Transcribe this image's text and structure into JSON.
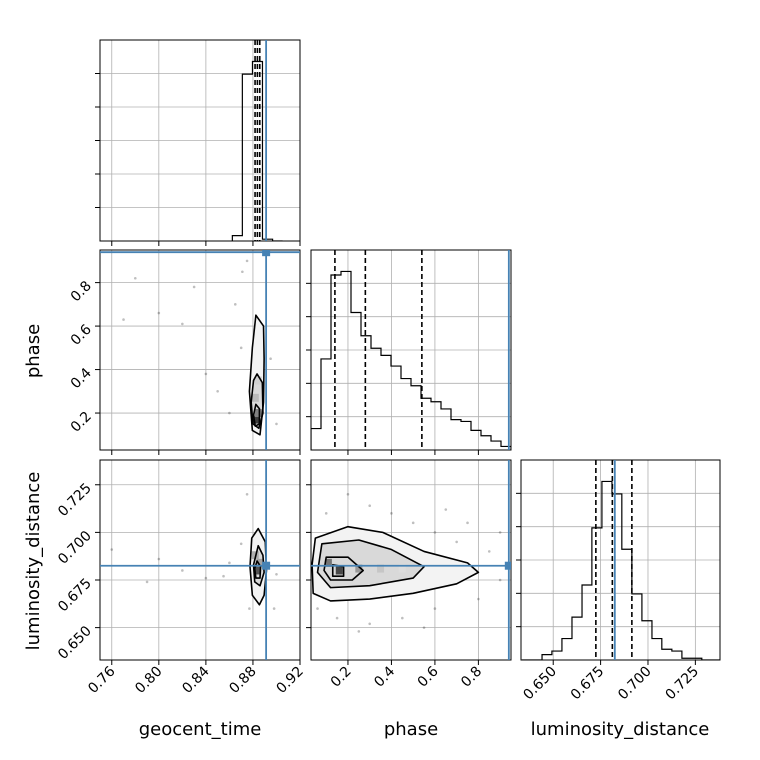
{
  "chart_data": {
    "type": "corner",
    "parameters": [
      {
        "name": "geocent_time",
        "xlabel": "geocent_time",
        "ylabel": "",
        "range": [
          0.75,
          0.92
        ],
        "ticks": [
          0.76,
          0.8,
          0.84,
          0.88,
          0.92
        ],
        "tick_labels": [
          "0.76",
          "0.80",
          "0.84",
          "0.88",
          "0.92"
        ],
        "truth": 0.8912,
        "quantiles": [
          0.8818,
          0.8838,
          0.8858
        ],
        "histogram": {
          "bin_edges": [
            0.8625,
            0.871,
            0.8796,
            0.8881,
            0.8967,
            0.9052
          ],
          "counts": [
            0.03,
            0.93,
            1.0,
            0.01,
            0.0
          ]
        }
      },
      {
        "name": "phase",
        "xlabel": "phase",
        "ylabel": "phase",
        "range": [
          0.03,
          0.95
        ],
        "ticks": [
          0.2,
          0.4,
          0.6,
          0.8
        ],
        "tick_labels": [
          "0.2",
          "0.4",
          "0.6",
          "0.8"
        ],
        "truth": 0.94,
        "quantiles": [
          0.14,
          0.28,
          0.54
        ],
        "histogram": {
          "bin_edges": [
            0.03,
            0.076,
            0.122,
            0.168,
            0.214,
            0.26,
            0.306,
            0.352,
            0.398,
            0.444,
            0.49,
            0.536,
            0.582,
            0.628,
            0.674,
            0.72,
            0.766,
            0.812,
            0.858,
            0.904,
            0.95
          ],
          "counts": [
            0.12,
            0.51,
            0.98,
            1.0,
            0.77,
            0.64,
            0.57,
            0.53,
            0.47,
            0.4,
            0.36,
            0.29,
            0.27,
            0.23,
            0.17,
            0.16,
            0.11,
            0.08,
            0.05,
            0.02
          ]
        }
      },
      {
        "name": "luminosity_distance",
        "xlabel": "luminosity_distance",
        "ylabel": "luminosity_distance",
        "range": [
          0.633,
          0.738
        ],
        "ticks": [
          0.65,
          0.675,
          0.7,
          0.725
        ],
        "tick_labels": [
          "0.650",
          "0.675",
          "0.700",
          "0.725"
        ],
        "truth": 0.6825,
        "quantiles": [
          0.6725,
          0.6812,
          0.6915
        ],
        "histogram": {
          "bin_edges": [
            0.6335,
            0.6388,
            0.6441,
            0.6493,
            0.6546,
            0.6599,
            0.6652,
            0.6704,
            0.6757,
            0.681,
            0.6862,
            0.6915,
            0.6968,
            0.7021,
            0.7073,
            0.7126,
            0.7179,
            0.7231,
            0.7284,
            0.7337,
            0.739
          ],
          "counts": [
            0.0,
            0.0,
            0.03,
            0.05,
            0.12,
            0.24,
            0.42,
            0.74,
            1.0,
            0.93,
            0.62,
            0.37,
            0.22,
            0.12,
            0.06,
            0.05,
            0.01,
            0.01,
            0.0,
            0.0
          ]
        }
      }
    ],
    "truth_color": "#4682b4",
    "quantile_style": "dashed",
    "grid": true,
    "panels_2d": [
      {
        "x_param": "geocent_time",
        "y_param": "phase",
        "contours": [
          [
            [
              0.8825,
              0.65
            ],
            [
              0.889,
              0.6
            ],
            [
              0.8895,
              0.45
            ],
            [
              0.889,
              0.25
            ],
            [
              0.886,
              0.1
            ],
            [
              0.8795,
              0.12
            ],
            [
              0.877,
              0.3
            ],
            [
              0.8795,
              0.5
            ],
            [
              0.8825,
              0.65
            ]
          ],
          [
            [
              0.8835,
              0.38
            ],
            [
              0.888,
              0.34
            ],
            [
              0.8885,
              0.2
            ],
            [
              0.885,
              0.13
            ],
            [
              0.88,
              0.15
            ],
            [
              0.8785,
              0.25
            ],
            [
              0.8805,
              0.35
            ],
            [
              0.8835,
              0.38
            ]
          ],
          [
            [
              0.8825,
              0.24
            ],
            [
              0.8855,
              0.22
            ],
            [
              0.8855,
              0.15
            ],
            [
              0.882,
              0.14
            ],
            [
              0.8805,
              0.19
            ],
            [
              0.8825,
              0.24
            ]
          ]
        ],
        "dense_cells": [
          [
            0.8825,
            0.17,
            0.85
          ],
          [
            0.8845,
            0.2,
            0.55
          ],
          [
            0.882,
            0.27,
            0.3
          ],
          [
            0.8845,
            0.35,
            0.2
          ]
        ],
        "scatter": [
          [
            0.86,
            0.2
          ],
          [
            0.85,
            0.3
          ],
          [
            0.84,
            0.38
          ],
          [
            0.82,
            0.61
          ],
          [
            0.8,
            0.66
          ],
          [
            0.78,
            0.82
          ],
          [
            0.77,
            0.63
          ],
          [
            0.83,
            0.78
          ],
          [
            0.87,
            0.5
          ],
          [
            0.871,
            0.85
          ],
          [
            0.865,
            0.7
          ],
          [
            0.895,
            0.45
          ],
          [
            0.9,
            0.15
          ],
          [
            0.875,
            0.9
          ]
        ]
      },
      {
        "x_param": "geocent_time",
        "y_param": "luminosity_distance",
        "contours": [
          [
            [
              0.8845,
              0.702
            ],
            [
              0.8905,
              0.695
            ],
            [
              0.8915,
              0.68
            ],
            [
              0.8895,
              0.667
            ],
            [
              0.8855,
              0.662
            ],
            [
              0.8795,
              0.667
            ],
            [
              0.8775,
              0.682
            ],
            [
              0.879,
              0.697
            ],
            [
              0.8845,
              0.702
            ]
          ],
          [
            [
              0.8845,
              0.693
            ],
            [
              0.8885,
              0.688
            ],
            [
              0.8895,
              0.679
            ],
            [
              0.886,
              0.672
            ],
            [
              0.8815,
              0.674
            ],
            [
              0.8805,
              0.683
            ],
            [
              0.8845,
              0.693
            ]
          ],
          [
            [
              0.8835,
              0.685
            ],
            [
              0.8865,
              0.682
            ],
            [
              0.886,
              0.676
            ],
            [
              0.8825,
              0.676
            ],
            [
              0.8815,
              0.681
            ],
            [
              0.8835,
              0.685
            ]
          ]
        ],
        "dense_cells": [
          [
            0.8835,
            0.68,
            0.75
          ],
          [
            0.886,
            0.684,
            0.4
          ],
          [
            0.882,
            0.688,
            0.35
          ]
        ],
        "scatter": [
          [
            0.76,
            0.691
          ],
          [
            0.8,
            0.686
          ],
          [
            0.82,
            0.68
          ],
          [
            0.84,
            0.676
          ],
          [
            0.86,
            0.684
          ],
          [
            0.855,
            0.677
          ],
          [
            0.875,
            0.72
          ],
          [
            0.877,
            0.66
          ],
          [
            0.87,
            0.694
          ],
          [
            0.9,
            0.678
          ],
          [
            0.898,
            0.66
          ],
          [
            0.79,
            0.674
          ]
        ]
      },
      {
        "x_param": "phase",
        "y_param": "luminosity_distance",
        "contours": [
          [
            [
              0.05,
              0.697
            ],
            [
              0.2,
              0.703
            ],
            [
              0.36,
              0.7
            ],
            [
              0.55,
              0.69
            ],
            [
              0.75,
              0.684
            ],
            [
              0.8,
              0.679
            ],
            [
              0.7,
              0.673
            ],
            [
              0.5,
              0.668
            ],
            [
              0.3,
              0.665
            ],
            [
              0.12,
              0.664
            ],
            [
              0.04,
              0.668
            ],
            [
              0.035,
              0.683
            ],
            [
              0.05,
              0.697
            ]
          ],
          [
            [
              0.08,
              0.694
            ],
            [
              0.25,
              0.696
            ],
            [
              0.4,
              0.691
            ],
            [
              0.55,
              0.682
            ],
            [
              0.5,
              0.676
            ],
            [
              0.3,
              0.672
            ],
            [
              0.12,
              0.671
            ],
            [
              0.06,
              0.679
            ],
            [
              0.08,
              0.694
            ]
          ],
          [
            [
              0.1,
              0.687
            ],
            [
              0.2,
              0.687
            ],
            [
              0.27,
              0.68
            ],
            [
              0.22,
              0.675
            ],
            [
              0.12,
              0.675
            ],
            [
              0.09,
              0.68
            ],
            [
              0.1,
              0.687
            ]
          ],
          [
            [
              0.13,
              0.683
            ],
            [
              0.18,
              0.682
            ],
            [
              0.18,
              0.677
            ],
            [
              0.13,
              0.677
            ],
            [
              0.13,
              0.683
            ]
          ]
        ],
        "dense_cells": [
          [
            0.16,
            0.68,
            0.8
          ],
          [
            0.11,
            0.684,
            0.6
          ],
          [
            0.25,
            0.681,
            0.45
          ],
          [
            0.35,
            0.681,
            0.25
          ],
          [
            0.45,
            0.681,
            0.15
          ]
        ],
        "scatter": [
          [
            0.1,
            0.71
          ],
          [
            0.2,
            0.72
          ],
          [
            0.3,
            0.714
          ],
          [
            0.4,
            0.71
          ],
          [
            0.5,
            0.705
          ],
          [
            0.6,
            0.7
          ],
          [
            0.7,
            0.695
          ],
          [
            0.85,
            0.69
          ],
          [
            0.9,
            0.675
          ],
          [
            0.8,
            0.665
          ],
          [
            0.6,
            0.66
          ],
          [
            0.45,
            0.655
          ],
          [
            0.3,
            0.652
          ],
          [
            0.15,
            0.655
          ],
          [
            0.06,
            0.66
          ],
          [
            0.9,
            0.7
          ],
          [
            0.65,
            0.712
          ],
          [
            0.25,
            0.648
          ],
          [
            0.55,
            0.65
          ],
          [
            0.75,
            0.705
          ]
        ]
      }
    ]
  }
}
